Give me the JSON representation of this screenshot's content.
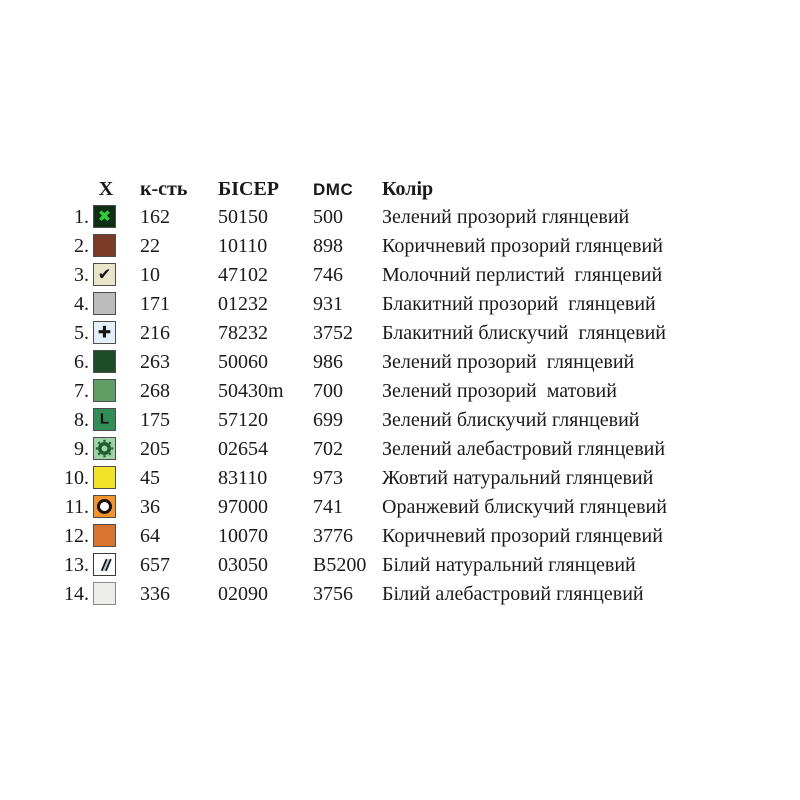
{
  "table": {
    "headers": {
      "symbol": "X",
      "count": "к-сть",
      "bead": "БІСЕР",
      "dmc": "DMC",
      "color": "Колір"
    },
    "icon_map": {
      "x-cross": "✖",
      "check": "✔",
      "plus": "✚",
      "letter-L": "L"
    },
    "rows": [
      {
        "num": "1.",
        "symbol": {
          "bg": "#0e2f13",
          "glyph": "x-cross",
          "glyph_color": "#2ed13b"
        },
        "count": "162",
        "bead": "50150",
        "dmc": "500",
        "color": "Зелений прозорий глянцевий"
      },
      {
        "num": "2.",
        "symbol": {
          "bg": "#7a3c29",
          "glyph": "none",
          "glyph_color": ""
        },
        "count": "22",
        "bead": "10110",
        "dmc": "898",
        "color": "Коричневий прозорий глянцевий"
      },
      {
        "num": "3.",
        "symbol": {
          "bg": "#e9e5c8",
          "glyph": "check",
          "glyph_color": "#151515"
        },
        "count": "10",
        "bead": "47102",
        "dmc": "746",
        "color": "Молочний перлистий  глянцевий"
      },
      {
        "num": "4.",
        "symbol": {
          "bg": "#bcbcbc",
          "glyph": "none",
          "glyph_color": ""
        },
        "count": "171",
        "bead": "01232",
        "dmc": "931",
        "color": "Блакитний прозорий  глянцевий"
      },
      {
        "num": "5.",
        "symbol": {
          "bg": "#e4eef7",
          "glyph": "plus",
          "glyph_color": "#151515"
        },
        "count": "216",
        "bead": "78232",
        "dmc": "3752",
        "color": "Блакитний блискучий  глянцевий"
      },
      {
        "num": "6.",
        "symbol": {
          "bg": "#1d4c26",
          "glyph": "none",
          "glyph_color": ""
        },
        "count": "263",
        "bead": "50060",
        "dmc": "986",
        "color": "Зелений прозорий  глянцевий"
      },
      {
        "num": "7.",
        "symbol": {
          "bg": "#5f9e65",
          "glyph": "none",
          "glyph_color": ""
        },
        "count": "268",
        "bead": "50430m",
        "dmc": "700",
        "color": "Зелений прозорий  матовий"
      },
      {
        "num": "8.",
        "symbol": {
          "bg": "#2f8d55",
          "glyph": "letter-L",
          "glyph_color": "#0a0a0a"
        },
        "count": "175",
        "bead": "57120",
        "dmc": "699",
        "color": "Зелений блискучий глянцевий"
      },
      {
        "num": "9.",
        "symbol": {
          "bg": "#9cd5a5",
          "glyph": "gear",
          "glyph_color": "#1e5c2f"
        },
        "count": "205",
        "bead": "02654",
        "dmc": "702",
        "color": "Зелений алебастровий глянцевий"
      },
      {
        "num": "10.",
        "symbol": {
          "bg": "#f3e328",
          "glyph": "none",
          "glyph_color": ""
        },
        "count": "45",
        "bead": "83110",
        "dmc": "973",
        "color": "Жовтий натуральний глянцевий"
      },
      {
        "num": "11.",
        "symbol": {
          "bg": "#f2932c",
          "glyph": "donut",
          "glyph_color": "#1a1008",
          "hole_color": "#ffffff"
        },
        "count": "36",
        "bead": "97000",
        "dmc": "741",
        "color": "Оранжевий блискучий глянцевий"
      },
      {
        "num": "12.",
        "symbol": {
          "bg": "#d97330",
          "glyph": "none",
          "glyph_color": ""
        },
        "count": "64",
        "bead": "10070",
        "dmc": "3776",
        "color": "Коричневий прозорий глянцевий"
      },
      {
        "num": "13.",
        "symbol": {
          "bg": "#ffffff",
          "glyph": "slashes",
          "glyph_color": "#161616",
          "accent_color": "#90bade",
          "border": "#3a3a3a"
        },
        "count": "657",
        "bead": "03050",
        "dmc": "B5200",
        "color": "Білий натуральний глянцевий"
      },
      {
        "num": "14.",
        "symbol": {
          "bg": "#ececea",
          "glyph": "none",
          "glyph_color": "",
          "border": "#8a8a8a"
        },
        "count": "336",
        "bead": "02090",
        "dmc": "3756",
        "color": "Білий алебастровий глянцевий"
      }
    ]
  }
}
